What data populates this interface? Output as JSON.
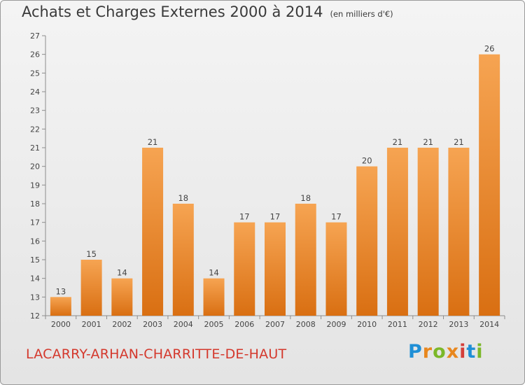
{
  "header": {
    "title": "Achats et Charges Externes 2000 à 2014",
    "unit": "(en milliers d'€)"
  },
  "footer": {
    "commune": "LACARRY-ARHAN-CHARRITTE-DE-HAUT",
    "logo_letters": [
      "P",
      "r",
      "o",
      "x",
      "i",
      "t",
      "i"
    ],
    "logo_colors": [
      "#1f8fd6",
      "#e8871e",
      "#7cb829",
      "#e8871e",
      "#d43f3a",
      "#1f8fd6",
      "#7cb829"
    ]
  },
  "chart_data": {
    "type": "bar",
    "categories": [
      "2000",
      "2001",
      "2002",
      "2003",
      "2004",
      "2005",
      "2006",
      "2007",
      "2008",
      "2009",
      "2010",
      "2011",
      "2012",
      "2013",
      "2014"
    ],
    "values": [
      13,
      15,
      14,
      21,
      18,
      14,
      17,
      17,
      18,
      17,
      20,
      21,
      21,
      21,
      26
    ],
    "data_labels": [
      "13",
      "15",
      "14",
      "21",
      "18",
      "14",
      "17",
      "17",
      "18",
      "17",
      "20",
      "21",
      "21",
      "21",
      "26"
    ],
    "y_ticks": [
      12,
      13,
      14,
      15,
      16,
      17,
      18,
      19,
      20,
      21,
      22,
      23,
      24,
      25,
      26,
      27
    ],
    "ylim": [
      12,
      27
    ],
    "bar_color_top": "#f6a452",
    "bar_color_bottom": "#d96f12",
    "grid": false
  }
}
